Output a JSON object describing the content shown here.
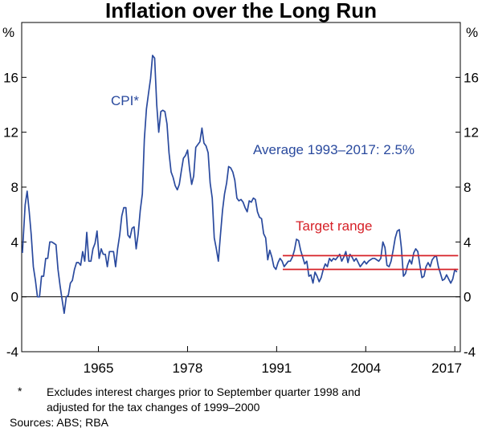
{
  "chart_data": {
    "type": "line",
    "title": "Inflation over the Long Run",
    "y_unit_left": "%",
    "y_unit_right": "%",
    "ylim": [
      -4,
      20
    ],
    "yticks": [
      -4,
      0,
      4,
      8,
      12,
      16
    ],
    "xlim": [
      1953.8,
      2017.8
    ],
    "xtick_labels": [
      "1965",
      "1978",
      "1991",
      "2004",
      "2017"
    ],
    "xtick_values": [
      1965,
      1978,
      1991,
      2004,
      2017
    ],
    "series": [
      {
        "name": "CPI*",
        "color": "#2a4a9e",
        "points": [
          [
            1953.9,
            3.2
          ],
          [
            1954.3,
            6.7
          ],
          [
            1954.6,
            7.7
          ],
          [
            1954.9,
            6.2
          ],
          [
            1955.2,
            4.5
          ],
          [
            1955.5,
            2.2
          ],
          [
            1955.8,
            1.2
          ],
          [
            1956.1,
            0.0
          ],
          [
            1956.4,
            0.0
          ],
          [
            1956.7,
            1.5
          ],
          [
            1957.0,
            1.5
          ],
          [
            1957.3,
            2.8
          ],
          [
            1957.6,
            2.8
          ],
          [
            1957.9,
            4.0
          ],
          [
            1958.2,
            4.0
          ],
          [
            1958.5,
            3.9
          ],
          [
            1958.8,
            3.8
          ],
          [
            1959.1,
            2.0
          ],
          [
            1959.4,
            0.8
          ],
          [
            1959.7,
            -0.2
          ],
          [
            1960.0,
            -1.2
          ],
          [
            1960.3,
            0.0
          ],
          [
            1960.6,
            0.1
          ],
          [
            1960.9,
            1.0
          ],
          [
            1961.2,
            1.2
          ],
          [
            1961.5,
            2.0
          ],
          [
            1961.8,
            2.5
          ],
          [
            1962.1,
            2.5
          ],
          [
            1962.4,
            2.3
          ],
          [
            1962.7,
            3.3
          ],
          [
            1963.0,
            2.6
          ],
          [
            1963.3,
            4.7
          ],
          [
            1963.6,
            2.6
          ],
          [
            1963.9,
            2.6
          ],
          [
            1964.2,
            3.5
          ],
          [
            1964.5,
            3.9
          ],
          [
            1964.8,
            4.8
          ],
          [
            1965.1,
            2.8
          ],
          [
            1965.4,
            3.5
          ],
          [
            1965.7,
            3.1
          ],
          [
            1966.0,
            3.1
          ],
          [
            1966.3,
            2.2
          ],
          [
            1966.6,
            3.3
          ],
          [
            1966.9,
            3.3
          ],
          [
            1967.2,
            3.3
          ],
          [
            1967.5,
            2.2
          ],
          [
            1967.8,
            3.5
          ],
          [
            1968.1,
            4.5
          ],
          [
            1968.4,
            5.9
          ],
          [
            1968.7,
            6.5
          ],
          [
            1969.0,
            6.5
          ],
          [
            1969.3,
            4.5
          ],
          [
            1969.6,
            4.3
          ],
          [
            1969.9,
            5.0
          ],
          [
            1970.2,
            5.1
          ],
          [
            1970.5,
            3.5
          ],
          [
            1970.8,
            4.6
          ],
          [
            1971.1,
            6.3
          ],
          [
            1971.4,
            7.5
          ],
          [
            1971.7,
            11.5
          ],
          [
            1972.0,
            13.7
          ],
          [
            1972.3,
            14.8
          ],
          [
            1972.6,
            15.9
          ],
          [
            1972.9,
            17.6
          ],
          [
            1973.2,
            17.4
          ],
          [
            1973.5,
            14.0
          ],
          [
            1973.8,
            12.0
          ],
          [
            1974.1,
            13.5
          ],
          [
            1974.4,
            13.6
          ],
          [
            1974.7,
            13.5
          ],
          [
            1975.0,
            12.6
          ],
          [
            1975.3,
            10.5
          ],
          [
            1975.6,
            9.1
          ],
          [
            1975.9,
            8.7
          ],
          [
            1976.2,
            8.1
          ],
          [
            1976.5,
            7.8
          ],
          [
            1976.8,
            8.2
          ],
          [
            1977.1,
            9.2
          ],
          [
            1977.4,
            10.1
          ],
          [
            1977.7,
            10.3
          ],
          [
            1978.0,
            10.7
          ],
          [
            1978.3,
            9.3
          ],
          [
            1978.6,
            8.2
          ],
          [
            1978.9,
            8.8
          ],
          [
            1979.2,
            10.9
          ],
          [
            1979.5,
            11.1
          ],
          [
            1979.8,
            11.3
          ],
          [
            1980.1,
            12.3
          ],
          [
            1980.4,
            11.2
          ],
          [
            1980.7,
            11.0
          ],
          [
            1981.0,
            10.5
          ],
          [
            1981.3,
            8.3
          ],
          [
            1981.6,
            7.2
          ],
          [
            1981.9,
            4.3
          ],
          [
            1982.2,
            3.5
          ],
          [
            1982.5,
            2.6
          ],
          [
            1982.8,
            4.5
          ],
          [
            1983.1,
            6.3
          ],
          [
            1983.4,
            7.5
          ],
          [
            1983.7,
            8.3
          ],
          [
            1984.0,
            9.5
          ],
          [
            1984.3,
            9.4
          ],
          [
            1984.6,
            9.1
          ],
          [
            1984.9,
            8.5
          ],
          [
            1985.2,
            7.2
          ],
          [
            1985.5,
            7.0
          ],
          [
            1985.8,
            7.1
          ],
          [
            1986.1,
            6.9
          ],
          [
            1986.4,
            6.5
          ],
          [
            1986.7,
            6.2
          ],
          [
            1987.0,
            7.0
          ],
          [
            1987.3,
            6.9
          ],
          [
            1987.6,
            7.2
          ],
          [
            1987.9,
            7.1
          ],
          [
            1988.2,
            6.2
          ],
          [
            1988.5,
            5.8
          ],
          [
            1988.8,
            5.7
          ],
          [
            1989.1,
            4.6
          ],
          [
            1989.4,
            4.3
          ],
          [
            1989.7,
            2.7
          ],
          [
            1990.0,
            3.4
          ],
          [
            1990.3,
            2.9
          ],
          [
            1990.6,
            2.2
          ],
          [
            1990.9,
            2.0
          ],
          [
            1991.2,
            2.5
          ],
          [
            1991.5,
            2.8
          ],
          [
            1991.8,
            2.6
          ],
          [
            1992.1,
            2.2
          ],
          [
            1992.4,
            2.4
          ],
          [
            1992.7,
            2.6
          ],
          [
            1993.0,
            2.6
          ],
          [
            1993.3,
            2.9
          ],
          [
            1993.6,
            3.4
          ],
          [
            1993.9,
            4.2
          ],
          [
            1994.2,
            4.1
          ],
          [
            1994.5,
            3.4
          ],
          [
            1994.8,
            2.9
          ],
          [
            1995.1,
            2.4
          ],
          [
            1995.4,
            2.6
          ],
          [
            1995.7,
            1.5
          ],
          [
            1996.0,
            1.6
          ],
          [
            1996.3,
            1.0
          ],
          [
            1996.6,
            1.8
          ],
          [
            1996.9,
            1.5
          ],
          [
            1997.2,
            1.1
          ],
          [
            1997.5,
            1.4
          ],
          [
            1997.8,
            2.0
          ],
          [
            1998.1,
            2.4
          ],
          [
            1998.4,
            2.2
          ],
          [
            1998.7,
            2.8
          ],
          [
            1999.0,
            2.6
          ],
          [
            1999.3,
            2.8
          ],
          [
            1999.6,
            2.7
          ],
          [
            1999.9,
            2.9
          ],
          [
            2000.2,
            3.1
          ],
          [
            2000.5,
            2.6
          ],
          [
            2000.8,
            2.9
          ],
          [
            2001.1,
            3.3
          ],
          [
            2001.4,
            2.5
          ],
          [
            2001.7,
            3.1
          ],
          [
            2002.0,
            2.9
          ],
          [
            2002.3,
            2.6
          ],
          [
            2002.6,
            2.8
          ],
          [
            2002.9,
            2.5
          ],
          [
            2003.2,
            2.2
          ],
          [
            2003.5,
            2.4
          ],
          [
            2003.8,
            2.6
          ],
          [
            2004.1,
            2.4
          ],
          [
            2004.4,
            2.6
          ],
          [
            2004.7,
            2.7
          ],
          [
            2005.0,
            2.8
          ],
          [
            2005.3,
            2.8
          ],
          [
            2005.6,
            2.7
          ],
          [
            2005.9,
            2.6
          ],
          [
            2006.2,
            2.8
          ],
          [
            2006.5,
            4.0
          ],
          [
            2006.8,
            3.6
          ],
          [
            2007.1,
            2.3
          ],
          [
            2007.4,
            2.2
          ],
          [
            2007.7,
            2.6
          ],
          [
            2008.0,
            3.4
          ],
          [
            2008.3,
            4.3
          ],
          [
            2008.6,
            4.8
          ],
          [
            2008.9,
            4.9
          ],
          [
            2009.2,
            3.6
          ],
          [
            2009.5,
            1.5
          ],
          [
            2009.8,
            1.7
          ],
          [
            2010.1,
            2.3
          ],
          [
            2010.4,
            2.7
          ],
          [
            2010.7,
            2.4
          ],
          [
            2011.0,
            3.2
          ],
          [
            2011.3,
            3.5
          ],
          [
            2011.6,
            3.3
          ],
          [
            2011.9,
            2.3
          ],
          [
            2012.2,
            1.4
          ],
          [
            2012.5,
            1.5
          ],
          [
            2012.8,
            2.2
          ],
          [
            2013.1,
            2.5
          ],
          [
            2013.4,
            2.2
          ],
          [
            2013.7,
            2.7
          ],
          [
            2014.0,
            2.9
          ],
          [
            2014.3,
            3.0
          ],
          [
            2014.6,
            2.2
          ],
          [
            2014.9,
            1.7
          ],
          [
            2015.2,
            1.2
          ],
          [
            2015.5,
            1.3
          ],
          [
            2015.8,
            1.6
          ],
          [
            2016.1,
            1.3
          ],
          [
            2016.4,
            1.0
          ],
          [
            2016.7,
            1.3
          ],
          [
            2017.0,
            2.0
          ],
          [
            2017.3,
            1.8
          ]
        ]
      },
      {
        "name": "Target range upper",
        "color": "#d62027",
        "points": [
          [
            1991.9,
            3.0
          ],
          [
            2017.5,
            3.0
          ]
        ]
      },
      {
        "name": "Target range lower",
        "color": "#d62027",
        "points": [
          [
            1991.9,
            2.0
          ],
          [
            2017.5,
            2.0
          ]
        ]
      }
    ],
    "annotations": {
      "cpi_label": "CPI*",
      "average_label": "Average 1993–2017: 2.5%",
      "target_label": "Target range"
    },
    "colors": {
      "cpi": "#2a4a9e",
      "target": "#d62027",
      "axis": "#000000",
      "zero_line": "#000000"
    }
  },
  "footnote": {
    "marker": "*",
    "line1": "Excludes interest charges prior to September quarter 1998 and",
    "line2": "adjusted for the tax changes of 1999–2000"
  },
  "sources": "Sources: ABS; RBA"
}
